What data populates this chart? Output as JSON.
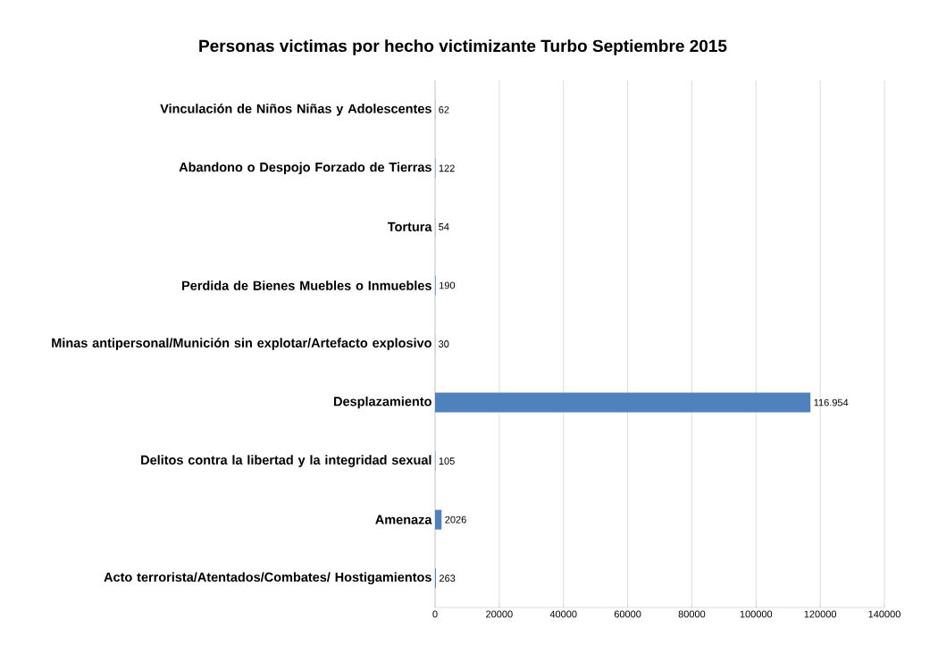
{
  "chart_data": {
    "type": "bar",
    "orientation": "horizontal",
    "title": "Personas victimas por hecho victimizante Turbo Septiembre 2015",
    "categories": [
      "Vinculación de Niños Niñas y Adolescentes",
      "Abandono o Despojo Forzado de Tierras",
      "Tortura",
      "Perdida de Bienes Muebles o Inmuebles",
      "Minas antipersonal/Munición sin explotar/Artefacto explosivo",
      "Desplazamiento",
      "Delitos contra la libertad y la integridad sexual",
      "Amenaza",
      "Acto terrorista/Atentados/Combates/ Hostigamientos"
    ],
    "values": [
      62,
      122,
      54,
      190,
      30,
      116954,
      105,
      2026,
      263
    ],
    "value_labels": [
      "62",
      "122",
      "54",
      "190",
      "30",
      "116.954",
      "105",
      "2026",
      "263"
    ],
    "color": "#4f81bd",
    "xlim": [
      0,
      140000
    ],
    "xticks": [
      0,
      20000,
      40000,
      60000,
      80000,
      100000,
      120000,
      140000
    ],
    "grid": "x"
  }
}
